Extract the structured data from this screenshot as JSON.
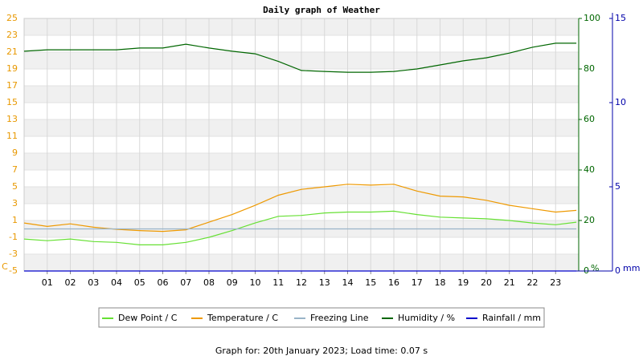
{
  "chart_data": {
    "type": "line",
    "title": "Daily graph of Weather",
    "footer": "Graph for: 20th January 2023; Load time: 0.07 s",
    "x": [
      0,
      1,
      2,
      3,
      4,
      5,
      6,
      7,
      8,
      9,
      10,
      11,
      12,
      13,
      14,
      15,
      16,
      17,
      18,
      19,
      20,
      21,
      22,
      23,
      23.9
    ],
    "xlim": [
      0,
      24
    ],
    "xticks": [
      {
        "value": 1,
        "label": "01"
      },
      {
        "value": 2,
        "label": "02"
      },
      {
        "value": 3,
        "label": "03"
      },
      {
        "value": 4,
        "label": "04"
      },
      {
        "value": 5,
        "label": "05"
      },
      {
        "value": 6,
        "label": "06"
      },
      {
        "value": 7,
        "label": "07"
      },
      {
        "value": 8,
        "label": "08"
      },
      {
        "value": 9,
        "label": "09"
      },
      {
        "value": 10,
        "label": "10"
      },
      {
        "value": 11,
        "label": "11"
      },
      {
        "value": 12,
        "label": "12"
      },
      {
        "value": 13,
        "label": "13"
      },
      {
        "value": 14,
        "label": "14"
      },
      {
        "value": 15,
        "label": "15"
      },
      {
        "value": 16,
        "label": "16"
      },
      {
        "value": 17,
        "label": "17"
      },
      {
        "value": 18,
        "label": "18"
      },
      {
        "value": 19,
        "label": "19"
      },
      {
        "value": 20,
        "label": "20"
      },
      {
        "value": 21,
        "label": "21"
      },
      {
        "value": 22,
        "label": "22"
      },
      {
        "value": 23,
        "label": "23"
      }
    ],
    "ylim": [
      -5,
      25
    ],
    "yticks": [
      -5,
      -3,
      -1,
      1,
      3,
      5,
      7,
      9,
      11,
      13,
      15,
      17,
      19,
      21,
      23,
      25
    ],
    "ylabel": "C",
    "ycolor": "#e89800",
    "y2lim": [
      0,
      100
    ],
    "y2ticks": [
      0,
      20,
      40,
      60,
      80,
      100
    ],
    "y2label": "%",
    "y2color": "#006600",
    "y3lim": [
      0,
      15
    ],
    "y3ticks": [
      0,
      5,
      10,
      15
    ],
    "y3label": "mm",
    "y3color": "#0000aa",
    "grid": true,
    "series": [
      {
        "name": "Dew Point / C",
        "color": "#66e033",
        "values": [
          -1.2,
          -1.4,
          -1.2,
          -1.5,
          -1.6,
          -1.9,
          -1.9,
          -1.6,
          -1.0,
          -0.2,
          0.7,
          1.5,
          1.6,
          1.9,
          2.0,
          2.0,
          2.1,
          1.7,
          1.4,
          1.3,
          1.2,
          1.0,
          0.7,
          0.5,
          0.8
        ]
      },
      {
        "name": "Temperature / C",
        "color": "#ee9900",
        "values": [
          0.7,
          0.3,
          0.6,
          0.2,
          -0.05,
          -0.2,
          -0.3,
          -0.1,
          0.8,
          1.7,
          2.8,
          4.0,
          4.7,
          5.0,
          5.3,
          5.2,
          5.3,
          4.5,
          3.9,
          3.8,
          3.4,
          2.8,
          2.4,
          2.0,
          2.2
        ]
      },
      {
        "name": "Freezing Line",
        "color": "#99b4c8",
        "values": [
          0,
          0,
          0,
          0,
          0,
          0,
          0,
          0,
          0,
          0,
          0,
          0,
          0,
          0,
          0,
          0,
          0,
          0,
          0,
          0,
          0,
          0,
          0,
          0,
          0
        ]
      },
      {
        "name": "Humidity / %",
        "color": "#006600",
        "axis": "y2",
        "values": [
          87,
          87.6,
          87.6,
          87.6,
          87.6,
          88.3,
          88.3,
          89.8,
          88.3,
          87,
          86,
          83,
          79.4,
          79,
          78.7,
          78.7,
          79,
          80,
          81.6,
          83.2,
          84.4,
          86.3,
          88.6,
          90.2,
          90.2
        ]
      },
      {
        "name": "Rainfall / mm",
        "color": "#0000cc",
        "axis": "y3",
        "values": [
          0,
          0,
          0,
          0,
          0,
          0,
          0,
          0,
          0,
          0,
          0,
          0,
          0,
          0,
          0,
          0,
          0,
          0,
          0,
          0,
          0,
          0,
          0,
          0,
          0
        ]
      }
    ]
  }
}
